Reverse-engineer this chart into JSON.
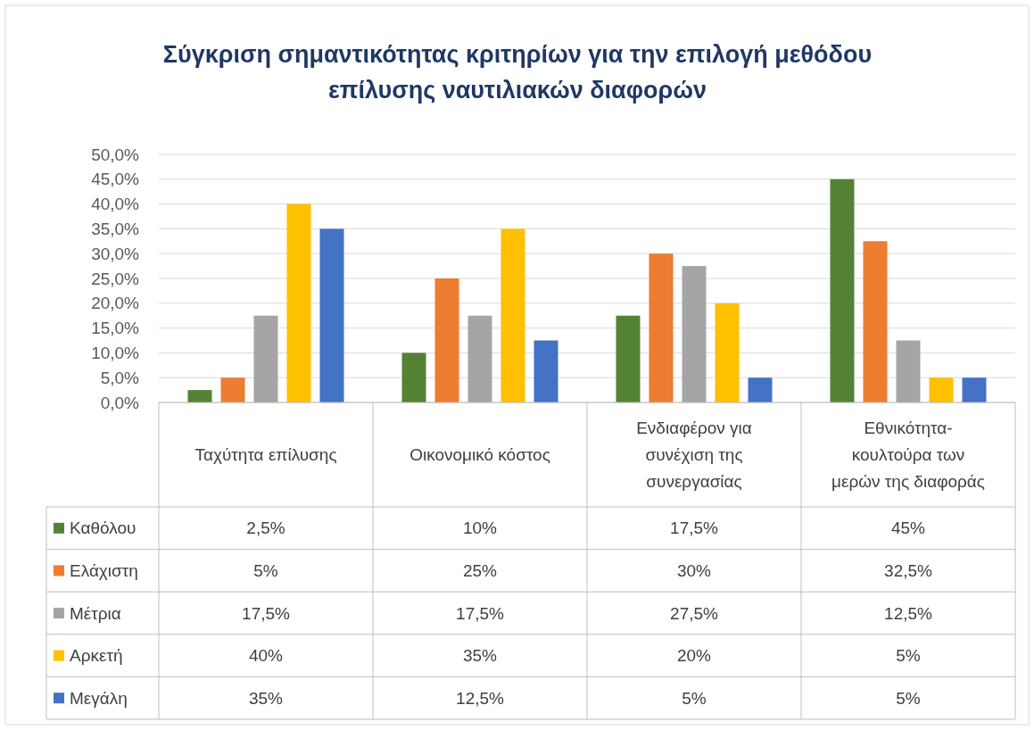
{
  "chart_data": {
    "type": "bar",
    "title": "Σύγκριση σημαντικότητας κριτηρίων για την επιλογή μεθόδου επίλυσης ναυτιλιακών διαφορών",
    "categories": [
      "Ταχύτητα επίλυσης",
      "Οικονομικό κόστος",
      "Ενδιαφέρον για συνέχιση της συνεργασίας",
      "Εθνικότητα-κουλτούρα των μερών της διαφοράς"
    ],
    "series": [
      {
        "name": "Καθόλου",
        "color": "#548235",
        "values": [
          2.5,
          10,
          17.5,
          45
        ],
        "value_labels": [
          "2,5%",
          "10%",
          "17,5%",
          "45%"
        ]
      },
      {
        "name": "Ελάχιστη",
        "color": "#ed7d31",
        "values": [
          5,
          25,
          30,
          32.5
        ],
        "value_labels": [
          "5%",
          "25%",
          "30%",
          "32,5%"
        ]
      },
      {
        "name": "Μέτρια",
        "color": "#a5a5a5",
        "values": [
          17.5,
          17.5,
          27.5,
          12.5
        ],
        "value_labels": [
          "17,5%",
          "17,5%",
          "27,5%",
          "12,5%"
        ]
      },
      {
        "name": "Αρκετή",
        "color": "#ffc000",
        "values": [
          40,
          35,
          20,
          5
        ],
        "value_labels": [
          "40%",
          "35%",
          "20%",
          "5%"
        ]
      },
      {
        "name": "Μεγάλη",
        "color": "#4472c4",
        "values": [
          35,
          12.5,
          5,
          5
        ],
        "value_labels": [
          "35%",
          "12,5%",
          "5%",
          "5%"
        ]
      }
    ],
    "ylim": [
      0,
      50
    ],
    "yticks": [
      {
        "value": 0,
        "label": "0,0%"
      },
      {
        "value": 5,
        "label": "5,0%"
      },
      {
        "value": 10,
        "label": "10,0%"
      },
      {
        "value": 15,
        "label": "15,0%"
      },
      {
        "value": 20,
        "label": "20,0%"
      },
      {
        "value": 25,
        "label": "25,0%"
      },
      {
        "value": 30,
        "label": "30,0%"
      },
      {
        "value": 35,
        "label": "35,0%"
      },
      {
        "value": 40,
        "label": "40,0%"
      },
      {
        "value": 45,
        "label": "45,0%"
      },
      {
        "value": 50,
        "label": "50,0%"
      }
    ],
    "grid": "y",
    "legend": "bottom"
  }
}
